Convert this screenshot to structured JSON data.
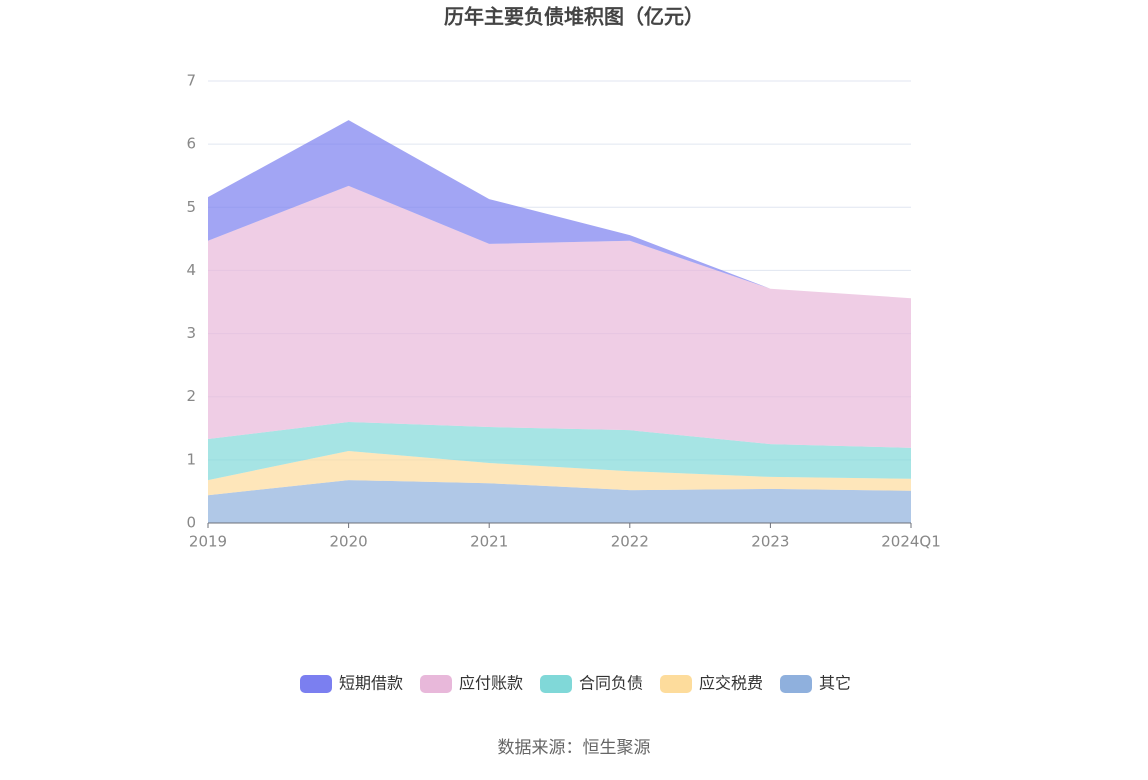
{
  "chart_data": {
    "type": "stacked-area",
    "title": "历年主要负债堆积图（亿元）",
    "source": "数据来源：恒生聚源",
    "categories": [
      "2019",
      "2020",
      "2021",
      "2022",
      "2023",
      "2024Q1"
    ],
    "series": [
      {
        "name": "短期借款",
        "color": "#7b7ff0",
        "values": [
          0.69,
          1.04,
          0.71,
          0.09,
          0,
          0
        ]
      },
      {
        "name": "应付账款",
        "color": "#e8b8da",
        "values": [
          3.14,
          3.74,
          2.9,
          3.0,
          2.46,
          2.37
        ]
      },
      {
        "name": "合同负债",
        "color": "#80d8d8",
        "values": [
          0.65,
          0.46,
          0.57,
          0.65,
          0.52,
          0.49
        ]
      },
      {
        "name": "应交税费",
        "color": "#fddc9c",
        "values": [
          0.24,
          0.46,
          0.32,
          0.3,
          0.19,
          0.19
        ]
      },
      {
        "name": "其它",
        "color": "#8fb0dd",
        "values": [
          0.44,
          0.68,
          0.63,
          0.52,
          0.54,
          0.51
        ]
      }
    ],
    "ylim": [
      0,
      7
    ],
    "yticks": [
      0,
      1,
      2,
      3,
      4,
      5,
      6,
      7
    ],
    "grid": true
  }
}
